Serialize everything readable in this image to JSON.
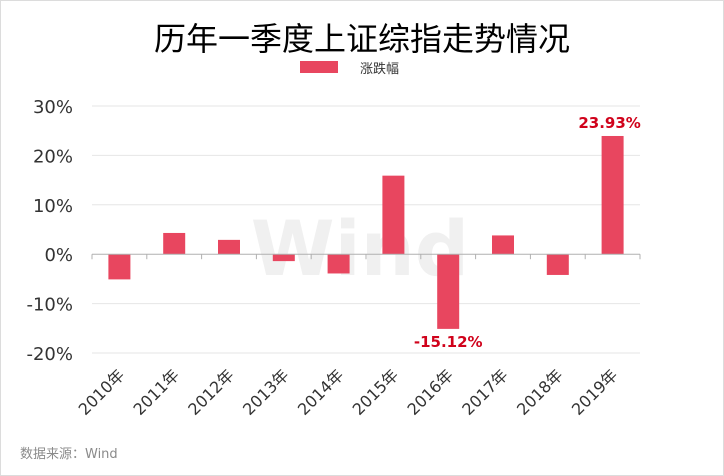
{
  "chart_data": {
    "type": "bar",
    "title": "历年一季度上证综指走势情况",
    "legend": {
      "label": "涨跌幅",
      "color": "#e8465f",
      "placement": "top"
    },
    "categories": [
      "2010年",
      "2011年",
      "2012年",
      "2013年",
      "2014年",
      "2015年",
      "2016年",
      "2017年",
      "2018年",
      "2019年"
    ],
    "series": [
      {
        "name": "涨跌幅",
        "values": [
          -5.1,
          4.3,
          2.9,
          -1.4,
          -3.9,
          15.9,
          -15.12,
          3.8,
          -4.2,
          23.93
        ]
      }
    ],
    "ylim": [
      -20,
      30
    ],
    "yticks": [
      30,
      20,
      10,
      0,
      -10,
      -20
    ],
    "ytick_labels": [
      "30%",
      "20%",
      "10%",
      "0%",
      "-10%",
      "-20%"
    ],
    "grid": true,
    "annotations": [
      {
        "category": "2016年",
        "text": "-15.12%"
      },
      {
        "category": "2019年",
        "text": "23.93%"
      }
    ],
    "watermark": "Wind",
    "source": "数据来源：Wind",
    "colors": {
      "bar": "#e8465f",
      "annotation": "#d0021b",
      "grid": "#e6e6e6",
      "axis": "#b0b0b0",
      "text": "#333333"
    }
  }
}
